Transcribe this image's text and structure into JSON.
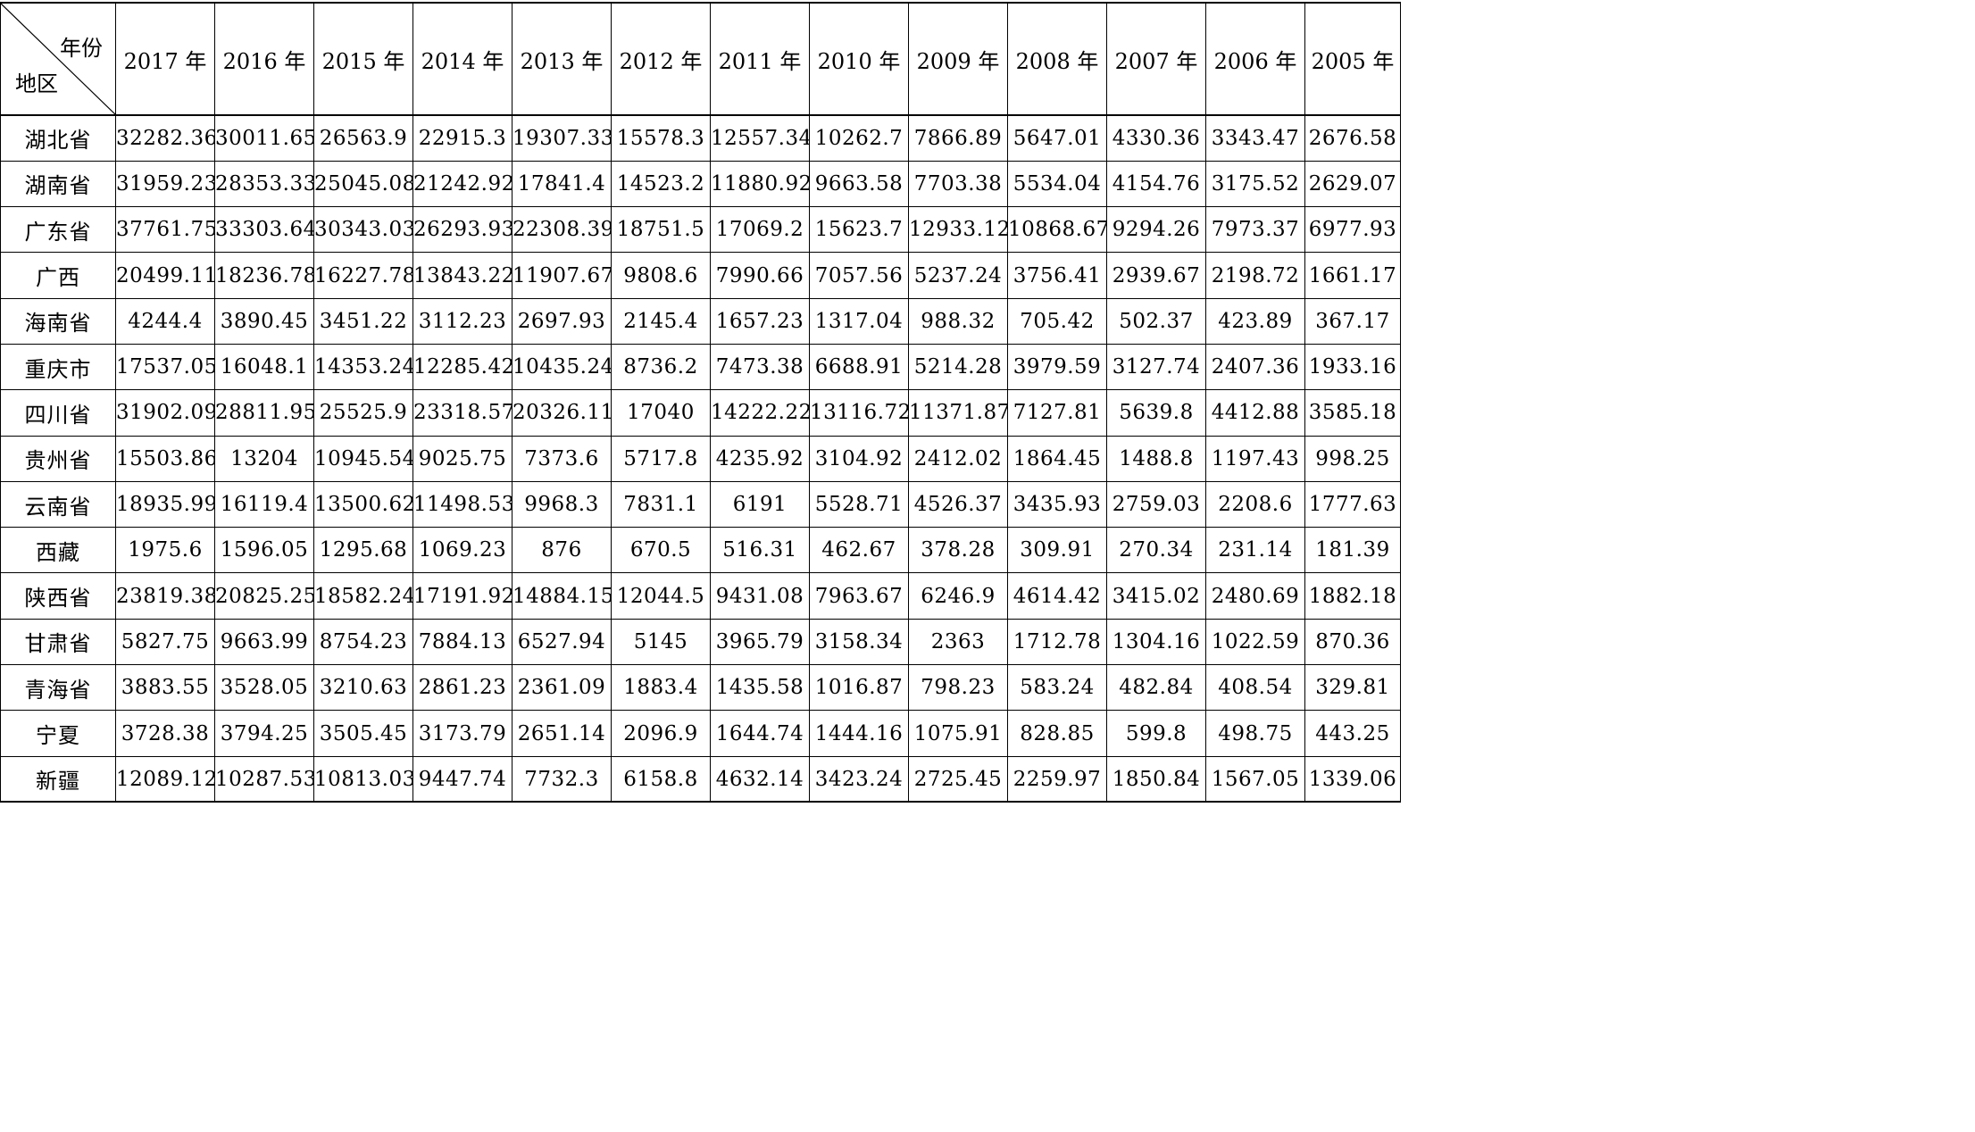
{
  "table": {
    "corner_col_label": "年份",
    "corner_row_label": "地区",
    "columns": [
      "2017 年",
      "2016 年",
      "2015 年",
      "2014 年",
      "2013 年",
      "2012 年",
      "2011 年",
      "2010 年",
      "2009 年",
      "2008 年",
      "2007 年",
      "2006 年",
      "2005 年"
    ],
    "rows": [
      {
        "region": "湖北省",
        "values": [
          "32282.36",
          "30011.65",
          "26563.9",
          "22915.3",
          "19307.33",
          "15578.3",
          "12557.34",
          "10262.7",
          "7866.89",
          "5647.01",
          "4330.36",
          "3343.47",
          "2676.58"
        ]
      },
      {
        "region": "湖南省",
        "values": [
          "31959.23",
          "28353.33",
          "25045.08",
          "21242.92",
          "17841.4",
          "14523.2",
          "11880.92",
          "9663.58",
          "7703.38",
          "5534.04",
          "4154.76",
          "3175.52",
          "2629.07"
        ]
      },
      {
        "region": "广东省",
        "values": [
          "37761.75",
          "33303.64",
          "30343.03",
          "26293.93",
          "22308.39",
          "18751.5",
          "17069.2",
          "15623.7",
          "12933.12",
          "10868.67",
          "9294.26",
          "7973.37",
          "6977.93"
        ]
      },
      {
        "region": "广西",
        "values": [
          "20499.11",
          "18236.78",
          "16227.78",
          "13843.22",
          "11907.67",
          "9808.6",
          "7990.66",
          "7057.56",
          "5237.24",
          "3756.41",
          "2939.67",
          "2198.72",
          "1661.17"
        ]
      },
      {
        "region": "海南省",
        "values": [
          "4244.4",
          "3890.45",
          "3451.22",
          "3112.23",
          "2697.93",
          "2145.4",
          "1657.23",
          "1317.04",
          "988.32",
          "705.42",
          "502.37",
          "423.89",
          "367.17"
        ]
      },
      {
        "region": "重庆市",
        "values": [
          "17537.05",
          "16048.1",
          "14353.24",
          "12285.42",
          "10435.24",
          "8736.2",
          "7473.38",
          "6688.91",
          "5214.28",
          "3979.59",
          "3127.74",
          "2407.36",
          "1933.16"
        ]
      },
      {
        "region": "四川省",
        "values": [
          "31902.09",
          "28811.95",
          "25525.9",
          "23318.57",
          "20326.11",
          "17040",
          "14222.22",
          "13116.72",
          "11371.87",
          "7127.81",
          "5639.8",
          "4412.88",
          "3585.18"
        ]
      },
      {
        "region": "贵州省",
        "values": [
          "15503.86",
          "13204",
          "10945.54",
          "9025.75",
          "7373.6",
          "5717.8",
          "4235.92",
          "3104.92",
          "2412.02",
          "1864.45",
          "1488.8",
          "1197.43",
          "998.25"
        ]
      },
      {
        "region": "云南省",
        "values": [
          "18935.99",
          "16119.4",
          "13500.62",
          "11498.53",
          "9968.3",
          "7831.1",
          "6191",
          "5528.71",
          "4526.37",
          "3435.93",
          "2759.03",
          "2208.6",
          "1777.63"
        ]
      },
      {
        "region": "西藏",
        "values": [
          "1975.6",
          "1596.05",
          "1295.68",
          "1069.23",
          "876",
          "670.5",
          "516.31",
          "462.67",
          "378.28",
          "309.91",
          "270.34",
          "231.14",
          "181.39"
        ]
      },
      {
        "region": "陕西省",
        "values": [
          "23819.38",
          "20825.25",
          "18582.24",
          "17191.92",
          "14884.15",
          "12044.5",
          "9431.08",
          "7963.67",
          "6246.9",
          "4614.42",
          "3415.02",
          "2480.69",
          "1882.18"
        ]
      },
      {
        "region": "甘肃省",
        "values": [
          "5827.75",
          "9663.99",
          "8754.23",
          "7884.13",
          "6527.94",
          "5145",
          "3965.79",
          "3158.34",
          "2363",
          "1712.78",
          "1304.16",
          "1022.59",
          "870.36"
        ]
      },
      {
        "region": "青海省",
        "values": [
          "3883.55",
          "3528.05",
          "3210.63",
          "2861.23",
          "2361.09",
          "1883.4",
          "1435.58",
          "1016.87",
          "798.23",
          "583.24",
          "482.84",
          "408.54",
          "329.81"
        ]
      },
      {
        "region": "宁夏",
        "values": [
          "3728.38",
          "3794.25",
          "3505.45",
          "3173.79",
          "2651.14",
          "2096.9",
          "1644.74",
          "1444.16",
          "1075.91",
          "828.85",
          "599.8",
          "498.75",
          "443.25"
        ]
      },
      {
        "region": "新疆",
        "values": [
          "12089.12",
          "10287.53",
          "10813.03",
          "9447.74",
          "7732.3",
          "6158.8",
          "4632.14",
          "3423.24",
          "2725.45",
          "2259.97",
          "1850.84",
          "1567.05",
          "1339.06"
        ]
      }
    ]
  }
}
